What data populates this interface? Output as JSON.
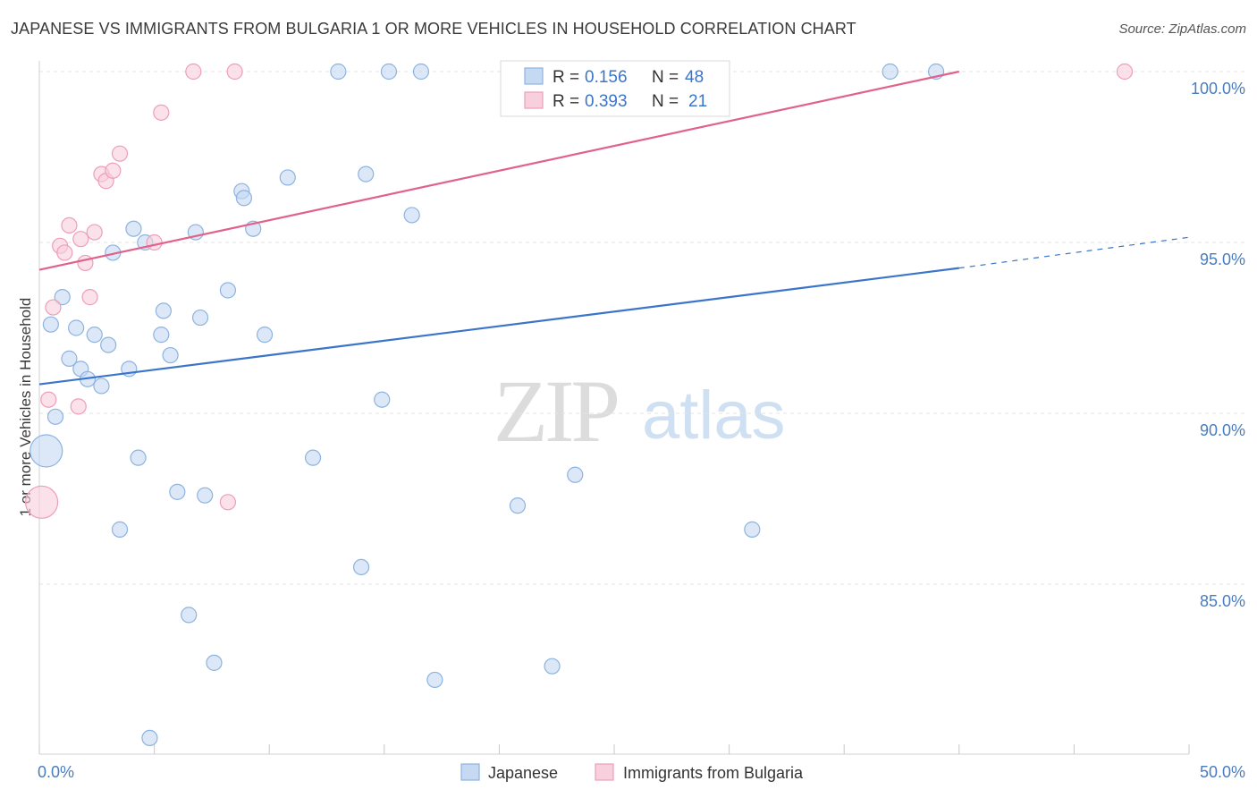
{
  "title": "JAPANESE VS IMMIGRANTS FROM BULGARIA 1 OR MORE VEHICLES IN HOUSEHOLD CORRELATION CHART",
  "source": "Source: ZipAtlas.com",
  "watermark": {
    "zip": "ZIP",
    "atlas": "atlas"
  },
  "colors": {
    "japanese_fill": "#c5d9f2",
    "japanese_stroke": "#8db3e0",
    "japanese_line": "#3b75c9",
    "bulgaria_fill": "#f8cfdc",
    "bulgaria_stroke": "#ec9fb6",
    "bulgaria_line": "#e0628a",
    "grid": "#e3e3e3",
    "axis_text": "#4a7cc0"
  },
  "legend": {
    "rows": [
      {
        "r_label": "R =",
        "r_value": "0.156",
        "n_label": "N =",
        "n_value": "48"
      },
      {
        "r_label": "R =",
        "r_value": "0.393",
        "n_label": "N =",
        "n_value": "21"
      }
    ]
  },
  "chart_data": {
    "type": "scatter",
    "title": "JAPANESE VS IMMIGRANTS FROM BULGARIA 1 OR MORE VEHICLES IN HOUSEHOLD CORRELATION CHART",
    "xlabel": "",
    "ylabel": "1 or more Vehicles in Household",
    "xlim": [
      0,
      50
    ],
    "ylim": [
      80,
      100.5
    ],
    "x_tick_labels": [
      "0.0%",
      "50.0%"
    ],
    "y_ticks": [
      85,
      90,
      95,
      100
    ],
    "y_tick_labels": [
      "85.0%",
      "90.0%",
      "95.0%",
      "100.0%"
    ],
    "grid": true,
    "legend_placement": "top-center",
    "series": [
      {
        "name": "Japanese",
        "trend": {
          "x0": 0,
          "y0": 90.85,
          "x1": 40,
          "y1": 94.25,
          "dashed_to_x": 50,
          "dashed_to_y": 95.15
        },
        "points": [
          {
            "x": 0.3,
            "y": 88.9,
            "big": true
          },
          {
            "x": 0.5,
            "y": 92.6
          },
          {
            "x": 0.7,
            "y": 89.9
          },
          {
            "x": 1.0,
            "y": 93.4
          },
          {
            "x": 1.3,
            "y": 91.6
          },
          {
            "x": 1.6,
            "y": 92.5
          },
          {
            "x": 1.8,
            "y": 91.3
          },
          {
            "x": 2.1,
            "y": 91.0
          },
          {
            "x": 2.4,
            "y": 92.3
          },
          {
            "x": 2.7,
            "y": 90.8
          },
          {
            "x": 3.0,
            "y": 92.0
          },
          {
            "x": 3.2,
            "y": 94.7
          },
          {
            "x": 3.5,
            "y": 86.6
          },
          {
            "x": 3.9,
            "y": 91.3
          },
          {
            "x": 4.1,
            "y": 95.4
          },
          {
            "x": 4.3,
            "y": 88.7
          },
          {
            "x": 4.6,
            "y": 95.0
          },
          {
            "x": 4.8,
            "y": 80.5
          },
          {
            "x": 5.3,
            "y": 92.3
          },
          {
            "x": 5.4,
            "y": 93.0
          },
          {
            "x": 5.7,
            "y": 91.7
          },
          {
            "x": 6.0,
            "y": 87.7
          },
          {
            "x": 6.5,
            "y": 84.1
          },
          {
            "x": 6.8,
            "y": 95.3
          },
          {
            "x": 7.0,
            "y": 92.8
          },
          {
            "x": 7.2,
            "y": 87.6
          },
          {
            "x": 7.6,
            "y": 82.7
          },
          {
            "x": 8.2,
            "y": 93.6
          },
          {
            "x": 8.8,
            "y": 96.5
          },
          {
            "x": 8.9,
            "y": 96.3
          },
          {
            "x": 9.3,
            "y": 95.4
          },
          {
            "x": 9.8,
            "y": 92.3
          },
          {
            "x": 10.8,
            "y": 96.9
          },
          {
            "x": 11.9,
            "y": 88.7
          },
          {
            "x": 13.0,
            "y": 100.0
          },
          {
            "x": 14.0,
            "y": 85.5
          },
          {
            "x": 14.2,
            "y": 97.0
          },
          {
            "x": 14.9,
            "y": 90.4
          },
          {
            "x": 15.2,
            "y": 100.0
          },
          {
            "x": 16.2,
            "y": 95.8
          },
          {
            "x": 16.6,
            "y": 100.0
          },
          {
            "x": 17.2,
            "y": 82.2
          },
          {
            "x": 20.8,
            "y": 87.3
          },
          {
            "x": 22.3,
            "y": 82.6
          },
          {
            "x": 23.3,
            "y": 88.2
          },
          {
            "x": 31.0,
            "y": 86.6
          },
          {
            "x": 37.0,
            "y": 100.0
          },
          {
            "x": 39.0,
            "y": 100.0
          }
        ]
      },
      {
        "name": "Immigrants from Bulgaria",
        "trend": {
          "x0": 0,
          "y0": 94.2,
          "x1": 40,
          "y1": 100.0
        },
        "points": [
          {
            "x": 0.1,
            "y": 87.4,
            "big": true
          },
          {
            "x": 0.4,
            "y": 90.4
          },
          {
            "x": 0.6,
            "y": 93.1
          },
          {
            "x": 0.9,
            "y": 94.9
          },
          {
            "x": 1.1,
            "y": 94.7
          },
          {
            "x": 1.3,
            "y": 95.5
          },
          {
            "x": 1.7,
            "y": 90.2
          },
          {
            "x": 1.8,
            "y": 95.1
          },
          {
            "x": 2.0,
            "y": 94.4
          },
          {
            "x": 2.2,
            "y": 93.4
          },
          {
            "x": 2.4,
            "y": 95.3
          },
          {
            "x": 2.7,
            "y": 97.0
          },
          {
            "x": 2.9,
            "y": 96.8
          },
          {
            "x": 3.2,
            "y": 97.1
          },
          {
            "x": 3.5,
            "y": 97.6
          },
          {
            "x": 5.0,
            "y": 95.0
          },
          {
            "x": 5.3,
            "y": 98.8
          },
          {
            "x": 6.7,
            "y": 100.0
          },
          {
            "x": 8.2,
            "y": 87.4
          },
          {
            "x": 8.5,
            "y": 100.0
          },
          {
            "x": 47.2,
            "y": 100.0
          }
        ]
      }
    ]
  }
}
